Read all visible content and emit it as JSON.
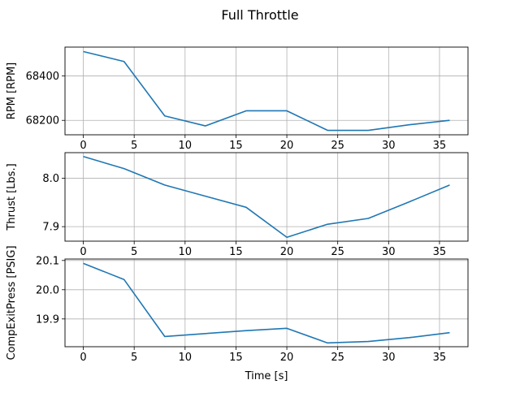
{
  "figure": {
    "title": "Full Throttle",
    "line_color": "#1f77b4",
    "grid_color": "#b0b0b0"
  },
  "chart_data": [
    {
      "type": "line",
      "title": "",
      "xlabel": "",
      "ylabel": "RPM [RPM]",
      "x": [
        0,
        4,
        8,
        12,
        16,
        20,
        24,
        28,
        32,
        36
      ],
      "values": [
        68510,
        68465,
        68220,
        68175,
        68243,
        68243,
        68155,
        68155,
        68180,
        68200
      ],
      "xlim": [
        -1.8,
        37.8
      ],
      "ylim": [
        68135,
        68530
      ],
      "xticks": [
        0,
        5,
        10,
        15,
        20,
        25,
        30,
        35
      ],
      "yticks": [
        68200,
        68400
      ],
      "grid": true
    },
    {
      "type": "line",
      "title": "",
      "xlabel": "",
      "ylabel": "Thrust [Lbs.]",
      "x": [
        0,
        4,
        8,
        12,
        16,
        20,
        24,
        28,
        32,
        36
      ],
      "values": [
        8.045,
        8.02,
        7.986,
        7.963,
        7.94,
        7.878,
        7.905,
        7.917,
        7.951,
        7.986
      ],
      "xlim": [
        -1.8,
        37.8
      ],
      "ylim": [
        7.87,
        8.053
      ],
      "xticks": [
        0,
        5,
        10,
        15,
        20,
        25,
        30,
        35
      ],
      "yticks": [
        7.9,
        8.0
      ],
      "grid": true
    },
    {
      "type": "line",
      "title": "",
      "xlabel": "Time [s]",
      "ylabel": "CompExitPress [PSIG]",
      "x": [
        0,
        4,
        8,
        12,
        16,
        20,
        24,
        28,
        32,
        36
      ],
      "values": [
        20.09,
        20.035,
        19.84,
        19.85,
        19.86,
        19.868,
        19.818,
        19.823,
        19.836,
        19.853
      ],
      "xlim": [
        -1.8,
        37.8
      ],
      "ylim": [
        19.805,
        20.105
      ],
      "xticks": [
        0,
        5,
        10,
        15,
        20,
        25,
        30,
        35
      ],
      "yticks": [
        19.9,
        20.0,
        20.1
      ],
      "grid": true
    }
  ]
}
